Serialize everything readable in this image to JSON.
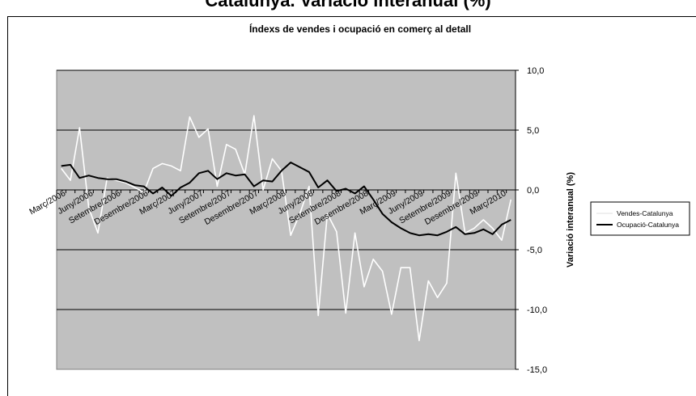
{
  "page_title": "Catalunya. Variació interanual (%)",
  "chart_data": {
    "type": "line",
    "title": "Índexs de vendes i ocupació en comerç al detall",
    "xlabel": "",
    "ylabel": "Variació interanual (%)",
    "ylim": [
      -15,
      10
    ],
    "y_ticks": [
      "10,0",
      "5,0",
      "0,0",
      "-5,0",
      "-10,0",
      "-15,0"
    ],
    "y_tick_values": [
      10,
      5,
      0,
      -5,
      -10,
      -15
    ],
    "y_axis_side": "right",
    "x_tick_labels": [
      "Març/2006",
      "Juny/2006",
      "Setembre/2006",
      "Desembre/2006",
      "Març/2007",
      "Juny/2007",
      "Setembre/2007",
      "Desembre/2007",
      "Març/2008",
      "Juny/2008",
      "Setembre/2008",
      "Desembre/2008",
      "Març/2009",
      "Juny/2009",
      "Setembre/2009",
      "Desembre/2009",
      "Març/2010"
    ],
    "x_tick_every": 3,
    "n_points": 50,
    "grid": true,
    "plot_background": "#c0c0c0",
    "legend_position": "right",
    "series": [
      {
        "name": "Vendes-Catalunya",
        "color": "#ffffff",
        "values": [
          1.8,
          0.8,
          5.2,
          -1.5,
          -3.6,
          1.0,
          0.8,
          0.6,
          0.2,
          -0.2,
          1.8,
          2.2,
          2.0,
          1.6,
          6.1,
          4.4,
          5.1,
          0.3,
          3.8,
          3.4,
          1.3,
          6.2,
          0.0,
          2.6,
          1.6,
          -3.8,
          -2.0,
          0.3,
          -10.5,
          -2.0,
          -3.5,
          -10.3,
          -3.6,
          -8.1,
          -5.8,
          -6.8,
          -10.4,
          -6.5,
          -6.5,
          -12.6,
          -7.6,
          -9.0,
          -7.8,
          1.4,
          -3.6,
          -3.2,
          -2.5,
          -3.2,
          -4.2,
          -0.8
        ]
      },
      {
        "name": "Ocupació-Catalunya",
        "color": "#000000",
        "values": [
          2.0,
          2.1,
          1.0,
          1.2,
          1.0,
          0.9,
          0.9,
          0.7,
          0.4,
          0.3,
          -0.3,
          0.2,
          -0.5,
          0.2,
          0.6,
          1.4,
          1.6,
          0.9,
          1.4,
          1.2,
          1.3,
          0.3,
          0.8,
          0.7,
          1.6,
          2.3,
          1.9,
          1.5,
          0.2,
          0.8,
          -0.1,
          0.1,
          -0.3,
          0.3,
          -0.8,
          -2.0,
          -2.7,
          -3.2,
          -3.6,
          -3.8,
          -3.7,
          -3.8,
          -3.5,
          -3.1,
          -3.7,
          -3.6,
          -3.3,
          -3.7,
          -2.9,
          -2.5
        ]
      }
    ]
  }
}
